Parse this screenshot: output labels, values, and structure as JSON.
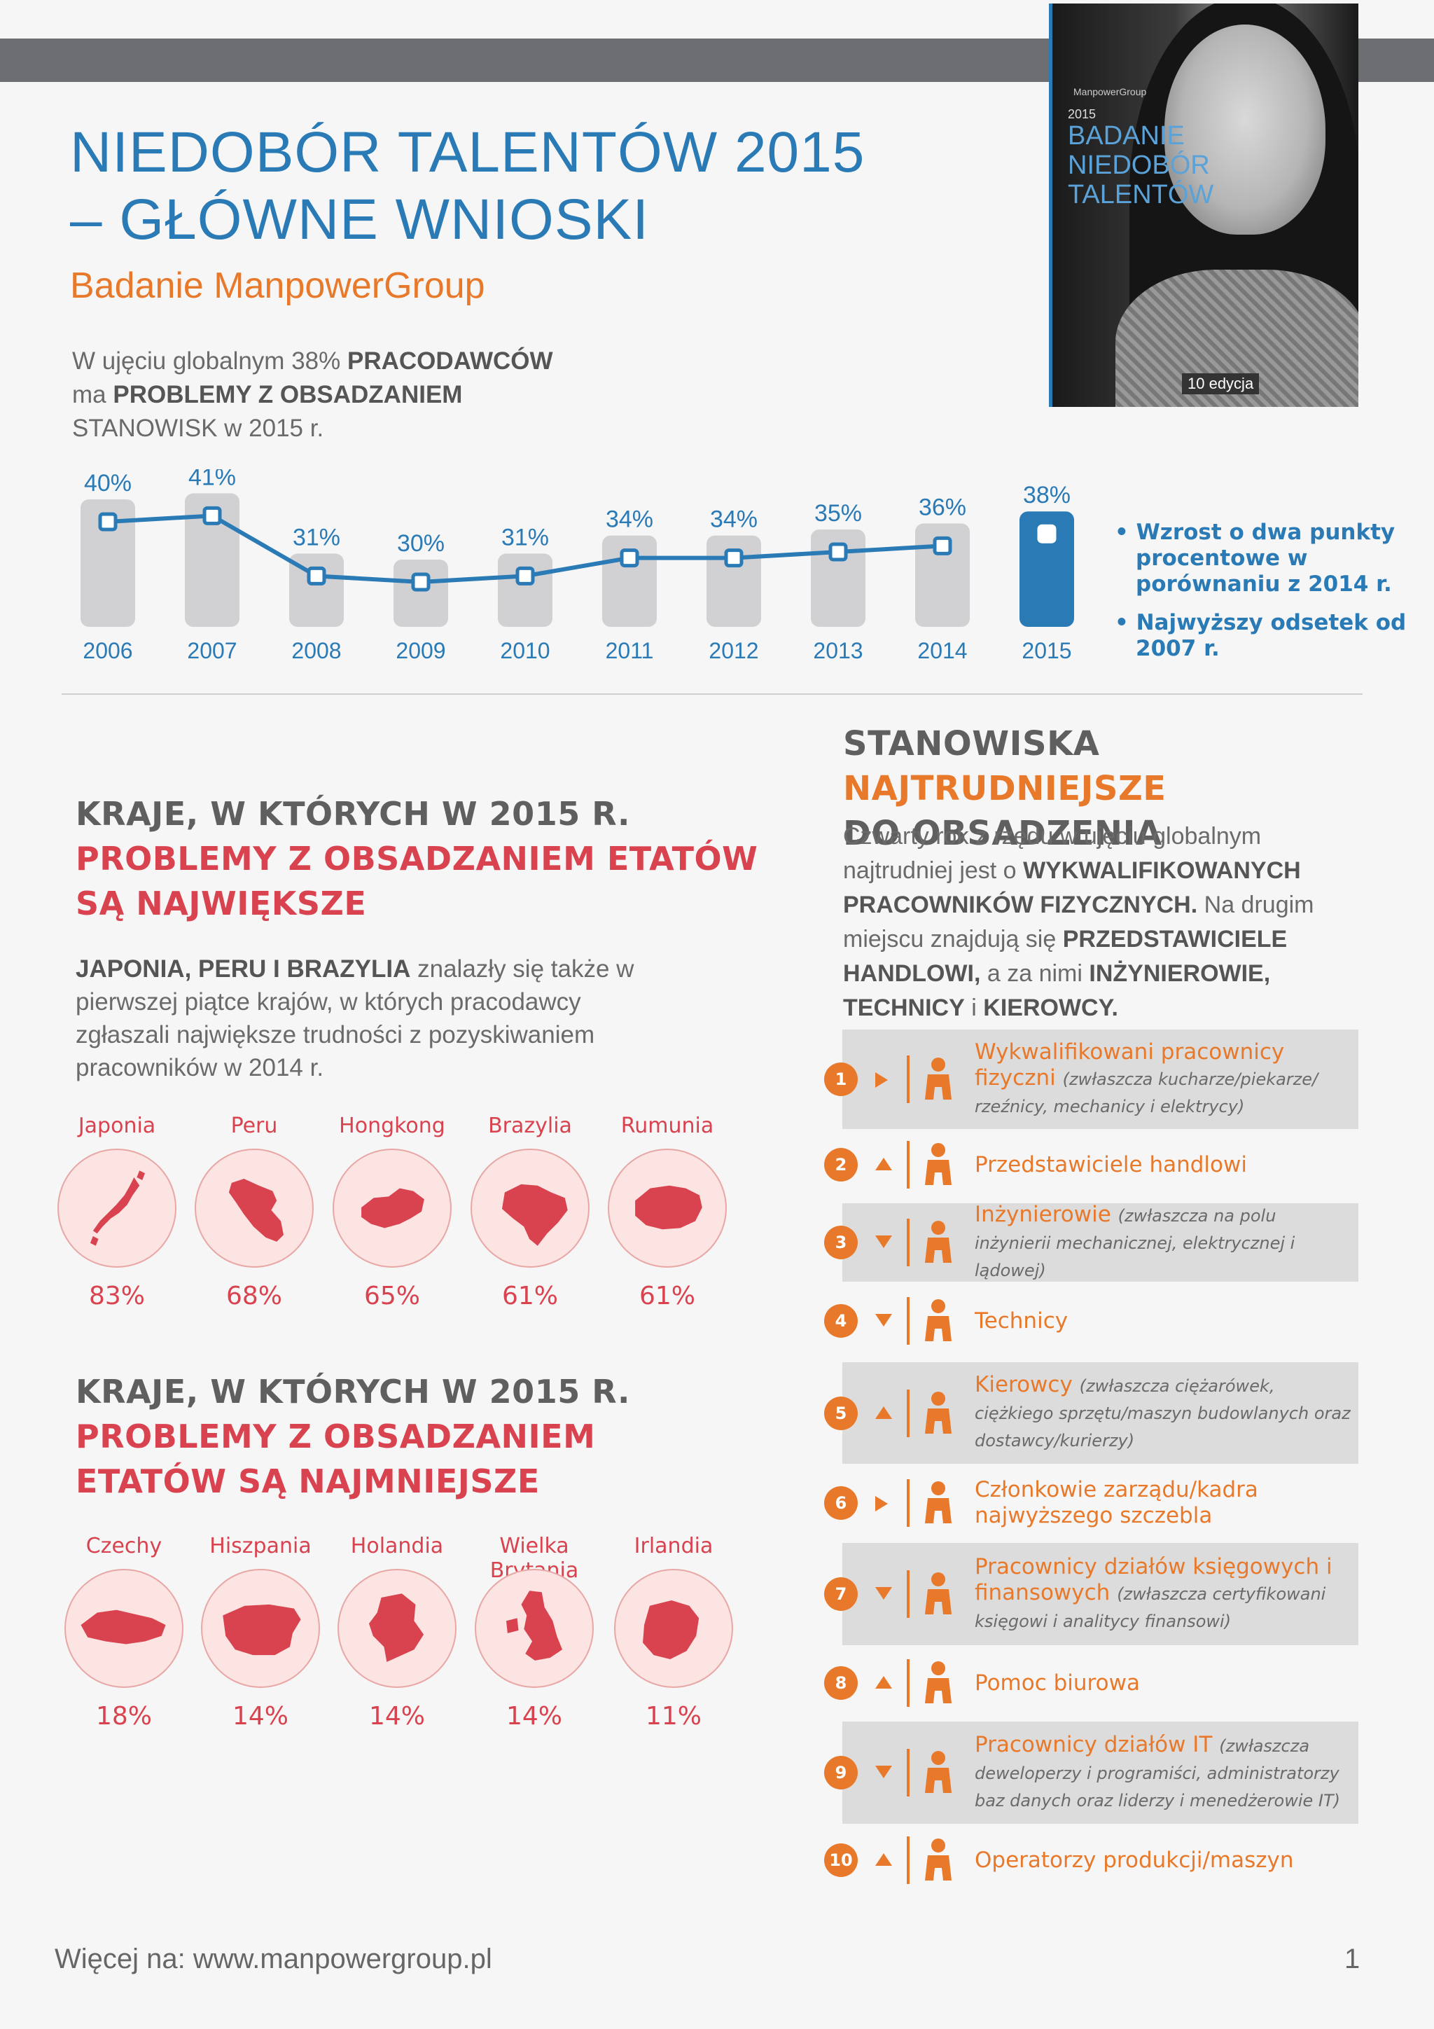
{
  "header": {
    "title_line1": "NIEDOBÓR TALENTÓW 2015",
    "title_line2": "– GŁÓWNE WNIOSKI",
    "subtitle": "Badanie ManpowerGroup"
  },
  "cover": {
    "logo": "ManpowerGroup",
    "year": "2015",
    "title_lines": [
      "BADANIE",
      "NIEDOBÓR",
      "TALENTÓW"
    ],
    "edition": "10 edycja"
  },
  "lead": {
    "p1": "W ujęciu globalnym 38%",
    "b1": "PRACODAWCÓW",
    "p2": "ma",
    "b2": "PROBLEMY Z OBSADZANIEM",
    "p3": "STANOWISK w 2015 r."
  },
  "chart_data": {
    "type": "bar",
    "categories": [
      "2006",
      "2007",
      "2008",
      "2009",
      "2010",
      "2011",
      "2012",
      "2013",
      "2014",
      "2015"
    ],
    "values": [
      40,
      41,
      31,
      30,
      31,
      34,
      34,
      35,
      36,
      38
    ],
    "labels": [
      "40%",
      "41%",
      "31%",
      "30%",
      "31%",
      "34%",
      "34%",
      "35%",
      "36%",
      "38%"
    ],
    "title": "",
    "xlabel": "",
    "ylabel": "",
    "ylim": [
      20,
      45
    ],
    "colors": {
      "bar": "#d1d1d3",
      "highlight": "#2a7ab6",
      "line": "#2a7ab6"
    },
    "highlight_index": 9
  },
  "chart_notes": [
    "• Wzrost o dwa punkty procentowe w porównaniu z 2014 r.",
    "• Najwyższy odsetek od 2007 r."
  ],
  "most": {
    "head_line1": "KRAJE, W KTÓRYCH W 2015 R.",
    "head_line2": "PROBLEMY Z OBSADZANIEM ETATÓW",
    "head_line3": "SĄ NAJWIĘKSZE",
    "body_bold": "JAPONIA, PERU I BRAZYLIA",
    "body_rest": "znalazły się także w pierwszej piątce krajów, w których pracodawcy zgłaszali największe trudności z pozyskiwaniem pracowników w 2014 r.",
    "countries": [
      {
        "name": "Japonia",
        "pct": "83%",
        "value": 83
      },
      {
        "name": "Peru",
        "pct": "68%",
        "value": 68
      },
      {
        "name": "Hongkong",
        "pct": "65%",
        "value": 65
      },
      {
        "name": "Brazylia",
        "pct": "61%",
        "value": 61
      },
      {
        "name": "Rumunia",
        "pct": "61%",
        "value": 61
      }
    ]
  },
  "least": {
    "head_line1": "KRAJE, W KTÓRYCH W 2015 R.",
    "head_line2": "PROBLEMY Z OBSADZANIEM",
    "head_line3": "ETATÓW SĄ NAJMNIEJSZE",
    "countries": [
      {
        "name": "Czechy",
        "pct": "18%",
        "value": 18
      },
      {
        "name": "Hiszpania",
        "pct": "14%",
        "value": 14
      },
      {
        "name": "Holandia",
        "pct": "14%",
        "value": 14
      },
      {
        "name": "Wielka Brytania",
        "pct": "14%",
        "value": 14
      },
      {
        "name": "Irlandia",
        "pct": "11%",
        "value": 11
      }
    ]
  },
  "positions": {
    "head_gray1": "STANOWISKA",
    "head_orange": "NAJTRUDNIEJSZE",
    "head_gray2": "DO OBSADZENIA",
    "intro_1": "Czwarty rok z rzędu w ujęciu globalnym najtrudniej jest o",
    "intro_b1": "WYKWALIFIKOWANYCH PRACOWNIKÓW FIZYCZNYCH.",
    "intro_2": "Na drugim miejscu znajdują się",
    "intro_b2": "PRZEDSTAWICIELE HANDLOWI,",
    "intro_3": "a za nimi",
    "intro_b3": "INŻYNIEROWIE, TECHNICY",
    "intro_4": "i",
    "intro_b4": "KIEROWCY.",
    "items": [
      {
        "rank": "1",
        "trend": "right",
        "icon": "worker-icon",
        "title": "Wykwalifikowani pracownicy fizyczni",
        "note": "(zwłaszcza kucharze/piekarze/ rzeźnicy, mechanicy i elektrycy)"
      },
      {
        "rank": "2",
        "trend": "up",
        "icon": "saleswoman-icon",
        "title": "Przedstawiciele handlowi",
        "note": ""
      },
      {
        "rank": "3",
        "trend": "down",
        "icon": "engineer-icon",
        "title": "Inżynierowie",
        "note": "(zwłaszcza na polu inżynierii mechanicznej, elektrycznej i lądowej)"
      },
      {
        "rank": "4",
        "trend": "down",
        "icon": "technician-icon",
        "title": "Technicy",
        "note": ""
      },
      {
        "rank": "5",
        "trend": "up",
        "icon": "driver-icon",
        "title": "Kierowcy",
        "note": "(zwłaszcza ciężarówek, ciężkiego sprzętu/maszyn budowlanych oraz dostawcy/kurierzy)"
      },
      {
        "rank": "6",
        "trend": "right",
        "icon": "management-icon",
        "title": "Członkowie zarządu/kadra najwyższego szczebla",
        "note": ""
      },
      {
        "rank": "7",
        "trend": "down",
        "icon": "accountant-icon",
        "title": "Pracownicy działów księgowych i finansowych",
        "note": "(zwłaszcza certyfikowani księgowi i analitycy finansowi)"
      },
      {
        "rank": "8",
        "trend": "up",
        "icon": "office-assistant-icon",
        "title": "Pomoc biurowa",
        "note": ""
      },
      {
        "rank": "9",
        "trend": "down",
        "icon": "it-worker-icon",
        "title": "Pracownicy działów IT",
        "note": "(zwłaszcza deweloperzy i programiści, administratorzy baz danych oraz liderzy i menedżerowie IT)"
      },
      {
        "rank": "10",
        "trend": "up",
        "icon": "machine-operator-icon",
        "title": "Operatorzy produkcji/maszyn",
        "note": ""
      }
    ]
  },
  "footer": {
    "more": "Więcej na: www.manpowergroup.pl",
    "page": "1"
  }
}
